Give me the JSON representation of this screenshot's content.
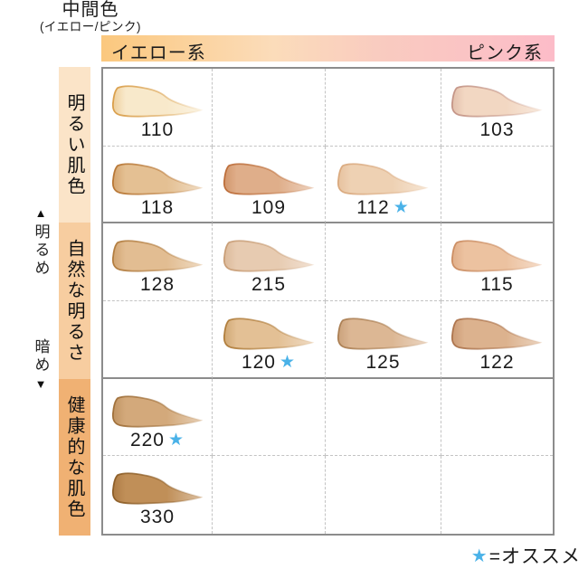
{
  "columns": [
    {
      "id": "yellow",
      "label": "イエロー系"
    },
    {
      "id": "neutral",
      "label": "中間色",
      "sublabel": "(イエロー/ピンク)"
    },
    {
      "id": "pink",
      "label": "ピンク系"
    }
  ],
  "header_gradient": [
    "#fbc87e",
    "#fbdcba",
    "#f9cbc0",
    "#fcbcc8"
  ],
  "row_groups": [
    {
      "label": "明るい肌色",
      "band_color": "#fbe4c8"
    },
    {
      "label": "自然な明るさ",
      "band_color": "#f7cda0"
    },
    {
      "label": "健康的な肌色",
      "band_color": "#f0b173"
    }
  ],
  "axis": {
    "up_arrow": "▲",
    "bright_label": "明るめ",
    "dark_label": "暗め",
    "down_arrow": "▼"
  },
  "legend": {
    "star": "★",
    "label": "=オススメ"
  },
  "star_color": "#4ab2e8",
  "grid": {
    "rows": 6,
    "cols": 4,
    "cells": [
      {
        "row": 0,
        "col": 0,
        "shade": "110",
        "fill": "#f8e9cb",
        "edge": "#d89b44",
        "recommended": false
      },
      {
        "row": 0,
        "col": 3,
        "shade": "103",
        "fill": "#f2d7c2",
        "edge": "#c29183",
        "recommended": false
      },
      {
        "row": 1,
        "col": 0,
        "shade": "118",
        "fill": "#e4c093",
        "edge": "#b5722e",
        "recommended": false
      },
      {
        "row": 1,
        "col": 1,
        "shade": "109",
        "fill": "#dfae8a",
        "edge": "#bb6a35",
        "recommended": false
      },
      {
        "row": 1,
        "col": 2,
        "shade": "112",
        "fill": "#eed1b3",
        "edge": "#d9a77b",
        "recommended": true
      },
      {
        "row": 2,
        "col": 0,
        "shade": "128",
        "fill": "#e2bd92",
        "edge": "#b0793a",
        "recommended": false
      },
      {
        "row": 2,
        "col": 1,
        "shade": "215",
        "fill": "#e7cbb1",
        "edge": "#c79b73",
        "recommended": false
      },
      {
        "row": 2,
        "col": 3,
        "shade": "115",
        "fill": "#ecc2a0",
        "edge": "#ca8a5e",
        "recommended": false
      },
      {
        "row": 3,
        "col": 1,
        "shade": "120",
        "fill": "#e3c095",
        "edge": "#ae7a37",
        "recommended": true
      },
      {
        "row": 3,
        "col": 2,
        "shade": "125",
        "fill": "#dcb794",
        "edge": "#a97c4f",
        "recommended": false
      },
      {
        "row": 3,
        "col": 3,
        "shade": "122",
        "fill": "#dcb28e",
        "edge": "#aa7048",
        "recommended": false
      },
      {
        "row": 4,
        "col": 0,
        "shade": "220",
        "fill": "#d3a97b",
        "edge": "#9d6c35",
        "recommended": true
      },
      {
        "row": 5,
        "col": 0,
        "shade": "330",
        "fill": "#c08f58",
        "edge": "#8a5a22",
        "recommended": false
      }
    ]
  }
}
